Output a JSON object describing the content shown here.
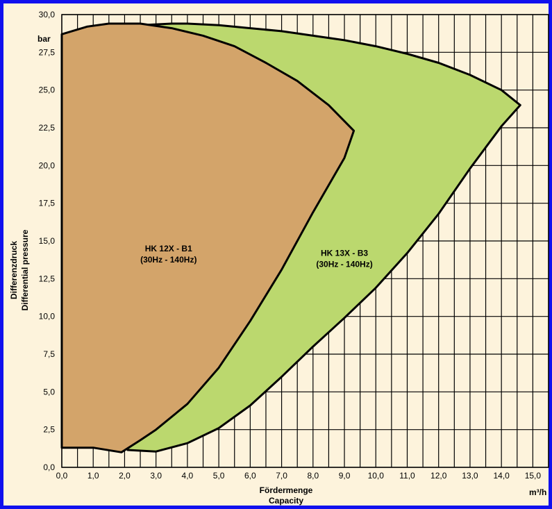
{
  "chart_data": {
    "type": "area",
    "xlabel": [
      "Fördermenge",
      "Capacity"
    ],
    "ylabel": [
      "Differenzdruck",
      "Differential pressure"
    ],
    "x_unit": "m³/h",
    "y_unit": "bar",
    "xlim": [
      0,
      15.5
    ],
    "ylim": [
      0,
      30
    ],
    "x_ticks": [
      "0,0",
      "1,0",
      "2,0",
      "3,0",
      "4,0",
      "5,0",
      "6,0",
      "7,0",
      "8,0",
      "9,0",
      "10,0",
      "11,0",
      "12,0",
      "13,0",
      "14,0",
      "15,0"
    ],
    "y_ticks": [
      "0,0",
      "2,5",
      "5,0",
      "7,5",
      "10,0",
      "12,5",
      "15,0",
      "17,5",
      "20,0",
      "22,5",
      "25,0",
      "27,5",
      "30,0"
    ],
    "grid": true,
    "colors": {
      "background": "#fdf3dc",
      "frame": "#1010ee",
      "area_1": "#d3a46a",
      "area_2": "#bbd86e",
      "outline": "#000000"
    },
    "series": [
      {
        "name": "HK 13X - B3",
        "label_lines": [
          "HK 13X - B3",
          "(30Hz - 140Hz)"
        ],
        "label_at": [
          9.0,
          14.0
        ],
        "fill": "#bbd86e",
        "points": [
          [
            2.1,
            1.15
          ],
          [
            3.0,
            1.05
          ],
          [
            4.0,
            1.6
          ],
          [
            5.0,
            2.6
          ],
          [
            6.0,
            4.1
          ],
          [
            7.0,
            6.0
          ],
          [
            8.0,
            8.0
          ],
          [
            9.0,
            9.9
          ],
          [
            10.0,
            11.9
          ],
          [
            11.0,
            14.2
          ],
          [
            12.0,
            16.8
          ],
          [
            13.0,
            19.8
          ],
          [
            14.0,
            22.6
          ],
          [
            14.6,
            24.0
          ],
          [
            14.0,
            25.0
          ],
          [
            13.0,
            26.0
          ],
          [
            12.0,
            26.8
          ],
          [
            11.0,
            27.4
          ],
          [
            10.0,
            27.9
          ],
          [
            9.0,
            28.3
          ],
          [
            8.0,
            28.6
          ],
          [
            7.0,
            28.9
          ],
          [
            6.0,
            29.1
          ],
          [
            5.0,
            29.3
          ],
          [
            4.0,
            29.4
          ],
          [
            3.5,
            29.4
          ],
          [
            2.5,
            29.3
          ],
          [
            1.5,
            29.2
          ]
        ]
      },
      {
        "name": "HK 12X - B1",
        "label_lines": [
          "HK 12X - B1",
          "(30Hz - 140Hz)"
        ],
        "label_at": [
          3.4,
          14.3
        ],
        "fill": "#d3a46a",
        "points": [
          [
            0.0,
            1.3
          ],
          [
            1.0,
            1.3
          ],
          [
            1.9,
            1.0
          ],
          [
            2.5,
            1.8
          ],
          [
            3.0,
            2.5
          ],
          [
            4.0,
            4.2
          ],
          [
            5.0,
            6.6
          ],
          [
            6.0,
            9.7
          ],
          [
            7.0,
            13.1
          ],
          [
            8.0,
            16.9
          ],
          [
            9.0,
            20.5
          ],
          [
            9.3,
            22.3
          ],
          [
            8.5,
            24.0
          ],
          [
            7.5,
            25.6
          ],
          [
            6.5,
            26.8
          ],
          [
            5.5,
            27.9
          ],
          [
            4.5,
            28.6
          ],
          [
            3.5,
            29.1
          ],
          [
            2.5,
            29.4
          ],
          [
            1.5,
            29.4
          ],
          [
            0.8,
            29.2
          ],
          [
            0.0,
            28.7
          ]
        ]
      }
    ]
  }
}
